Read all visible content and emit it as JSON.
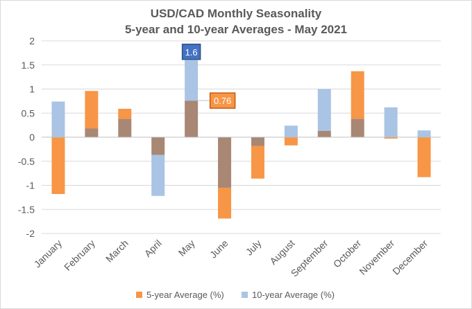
{
  "chart_data": {
    "type": "bar",
    "title": "USD/CAD Monthly Seasonality",
    "subtitle": "5-year and 10-year Averages - May 2021",
    "xlabel": "",
    "ylabel": "",
    "ylim": [
      -2,
      2
    ],
    "yticks": [
      "2",
      "1.5",
      "1",
      "0.5",
      "0",
      "-0.5",
      "-1",
      "-1.5",
      "-2"
    ],
    "categories": [
      "January",
      "February",
      "March",
      "April",
      "May",
      "June",
      "July",
      "August",
      "September",
      "October",
      "November",
      "December"
    ],
    "series": [
      {
        "name": "5-year Average (%)",
        "color": "#f79646",
        "values": [
          -1.18,
          0.96,
          0.59,
          -0.37,
          0.76,
          -1.69,
          -0.86,
          -0.17,
          0.13,
          1.37,
          -0.03,
          -0.83
        ]
      },
      {
        "name": "10-year Average (%)",
        "color": "#a9c4e4",
        "values": [
          0.74,
          0.18,
          0.38,
          -1.22,
          1.6,
          -1.05,
          -0.18,
          0.24,
          1.0,
          0.38,
          0.62,
          0.14
        ]
      }
    ],
    "overlap_color": "#a88774",
    "annotations": [
      {
        "label": "1.6",
        "series": "10-year Average (%)",
        "category": "May",
        "fill": "#4472c4",
        "border": "#2f4f7f",
        "text_color": "#ffffff"
      },
      {
        "label": "0.76",
        "series": "5-year Average (%)",
        "category": "May",
        "fill": "#f79646",
        "border": "#c55a11",
        "text_color": "#ffffff"
      }
    ],
    "legend_position": "bottom",
    "grid": true
  }
}
